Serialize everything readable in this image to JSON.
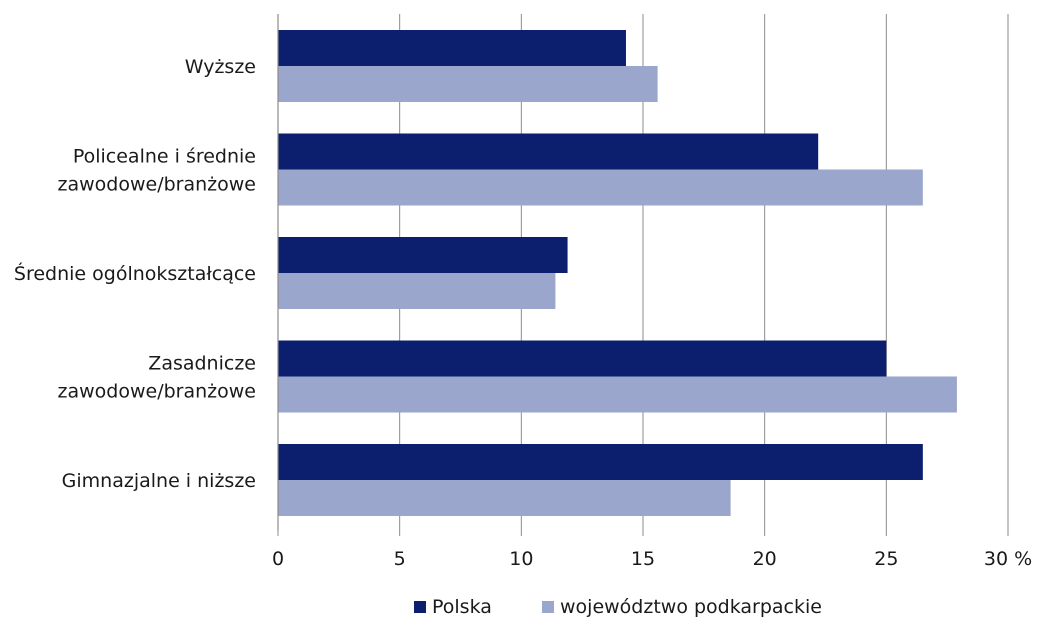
{
  "chart_data": {
    "type": "bar",
    "orientation": "horizontal",
    "categories": [
      [
        "Wyższe"
      ],
      [
        "Policealne i średnie",
        "zawodowe/branżowe"
      ],
      [
        "Średnie ogólnokształcące"
      ],
      [
        "Zasadnicze",
        "zawodowe/branżowe"
      ],
      [
        "Gimnazjalne i niższe"
      ]
    ],
    "series": [
      {
        "name": "Polska",
        "color": "#0b1f6e",
        "values": [
          14.3,
          22.2,
          11.9,
          25.0,
          26.5
        ]
      },
      {
        "name": "województwo podkarpackie",
        "color": "#9aa6cb",
        "values": [
          15.6,
          26.5,
          11.4,
          27.9,
          18.6
        ]
      }
    ],
    "xlim": [
      0,
      30
    ],
    "xticks": [
      "0",
      "5",
      "10",
      "15",
      "20",
      "25",
      "30 %"
    ],
    "grid": true,
    "legend_position": "bottom-center"
  }
}
